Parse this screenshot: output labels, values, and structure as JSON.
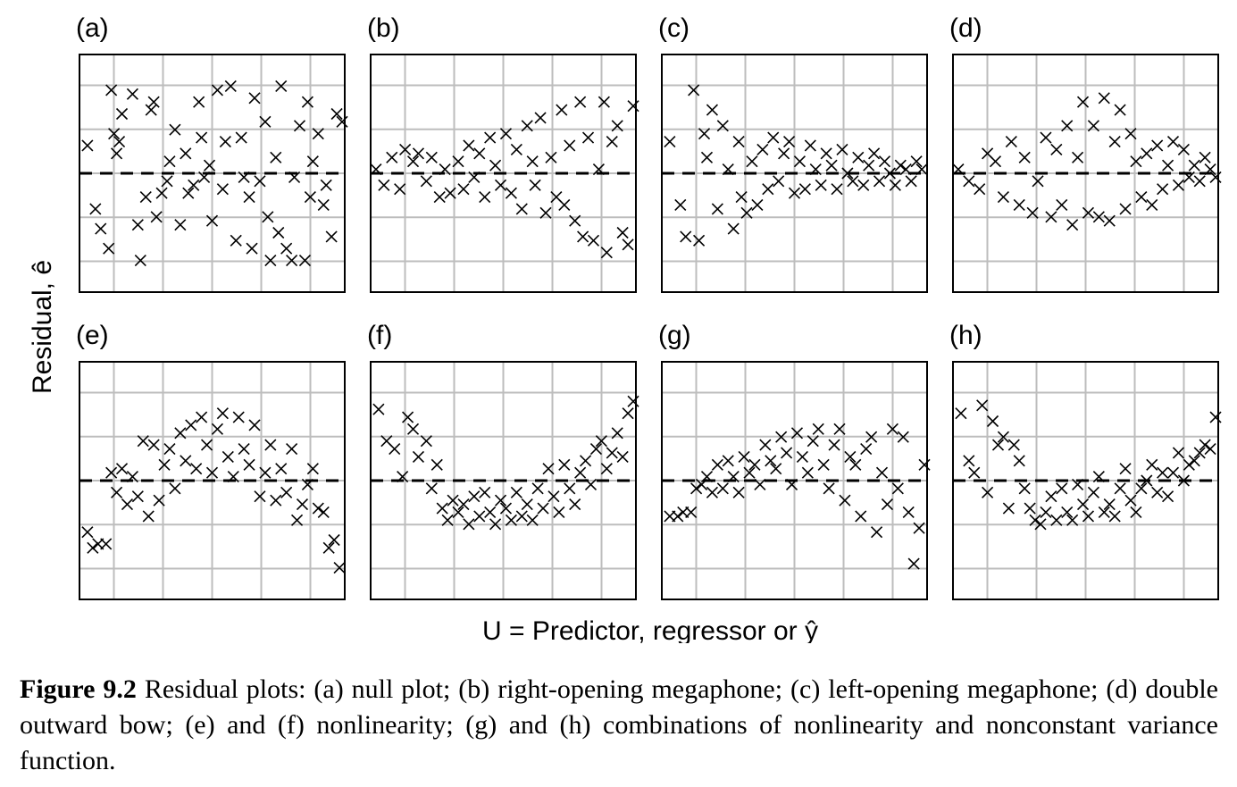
{
  "figure": {
    "ylabel": "Residual, ê",
    "xlabel": "U = Predictor, regressor or ŷ",
    "caption_label": "Figure 9.2",
    "caption_text": "Residual plots: (a) null plot; (b) right-opening megaphone; (c) left-opening megaphone; (d) double outward bow; (e) and (f) nonlinearity; (g) and (h) combinations of nonlinearity and nonconstant variance function."
  },
  "chart_data": [
    {
      "type": "scatter",
      "label": "(a)",
      "pattern": "null plot",
      "xlim": [
        0,
        1
      ],
      "ylim": [
        -3,
        3
      ],
      "grid": true,
      "reference_line": 0,
      "x": [
        0.03,
        0.06,
        0.08,
        0.11,
        0.12,
        0.13,
        0.14,
        0.15,
        0.16,
        0.2,
        0.22,
        0.23,
        0.25,
        0.27,
        0.28,
        0.29,
        0.31,
        0.33,
        0.34,
        0.36,
        0.38,
        0.4,
        0.41,
        0.43,
        0.45,
        0.46,
        0.47,
        0.49,
        0.5,
        0.52,
        0.54,
        0.55,
        0.57,
        0.59,
        0.61,
        0.62,
        0.64,
        0.65,
        0.66,
        0.68,
        0.7,
        0.71,
        0.72,
        0.74,
        0.75,
        0.76,
        0.78,
        0.8,
        0.81,
        0.83,
        0.85,
        0.86,
        0.87,
        0.88,
        0.9,
        0.92,
        0.93,
        0.95,
        0.97,
        0.99
      ],
      "y": [
        0.7,
        -0.9,
        -1.4,
        -1.9,
        2.1,
        1.0,
        0.5,
        0.8,
        1.5,
        2.0,
        -1.3,
        -2.2,
        -0.6,
        1.6,
        1.8,
        -1.1,
        -0.5,
        -0.2,
        0.3,
        1.1,
        -1.3,
        0.5,
        -0.5,
        -0.3,
        1.8,
        0.9,
        -0.1,
        0.2,
        -1.2,
        2.1,
        -0.4,
        0.8,
        2.2,
        -1.7,
        0.9,
        -0.1,
        -0.6,
        -1.9,
        1.9,
        -0.2,
        1.3,
        -1.1,
        -2.2,
        0.4,
        -1.5,
        2.2,
        -1.9,
        -2.2,
        -0.1,
        1.2,
        -2.2,
        1.8,
        -0.6,
        0.3,
        1.0,
        -0.8,
        -0.3,
        -1.6,
        1.5,
        1.3
      ]
    },
    {
      "type": "scatter",
      "label": "(b)",
      "pattern": "right-opening megaphone",
      "xlim": [
        0,
        1
      ],
      "ylim": [
        -3,
        3
      ],
      "grid": true,
      "reference_line": 0,
      "x": [
        0.02,
        0.05,
        0.08,
        0.11,
        0.13,
        0.16,
        0.18,
        0.21,
        0.23,
        0.26,
        0.28,
        0.3,
        0.33,
        0.35,
        0.37,
        0.39,
        0.41,
        0.43,
        0.45,
        0.47,
        0.49,
        0.51,
        0.53,
        0.55,
        0.57,
        0.59,
        0.61,
        0.62,
        0.64,
        0.66,
        0.68,
        0.7,
        0.72,
        0.73,
        0.75,
        0.77,
        0.79,
        0.8,
        0.82,
        0.84,
        0.86,
        0.88,
        0.89,
        0.91,
        0.93,
        0.95,
        0.97,
        0.99
      ],
      "y": [
        0.1,
        -0.3,
        0.4,
        -0.4,
        0.6,
        0.3,
        0.5,
        -0.2,
        0.4,
        -0.6,
        0.1,
        -0.5,
        0.3,
        -0.4,
        0.7,
        -0.1,
        0.5,
        -0.6,
        0.9,
        0.2,
        -0.3,
        1.0,
        -0.5,
        0.6,
        -0.9,
        1.2,
        0.3,
        -0.3,
        1.4,
        -1.0,
        0.4,
        -0.6,
        1.6,
        -0.8,
        0.7,
        -1.2,
        1.8,
        -1.6,
        0.9,
        -1.7,
        0.1,
        1.8,
        -2.0,
        0.8,
        1.2,
        -1.5,
        -1.8,
        1.7
      ]
    },
    {
      "type": "scatter",
      "label": "(c)",
      "pattern": "left-opening megaphone",
      "xlim": [
        0,
        1
      ],
      "ylim": [
        -3,
        3
      ],
      "grid": true,
      "reference_line": 0,
      "x": [
        0.03,
        0.07,
        0.09,
        0.12,
        0.14,
        0.16,
        0.17,
        0.19,
        0.21,
        0.23,
        0.25,
        0.27,
        0.29,
        0.3,
        0.32,
        0.34,
        0.36,
        0.38,
        0.4,
        0.42,
        0.44,
        0.46,
        0.48,
        0.5,
        0.52,
        0.54,
        0.56,
        0.58,
        0.6,
        0.62,
        0.64,
        0.66,
        0.68,
        0.7,
        0.72,
        0.74,
        0.76,
        0.78,
        0.8,
        0.82,
        0.84,
        0.86,
        0.88,
        0.9,
        0.92,
        0.94,
        0.96,
        0.98
      ],
      "y": [
        0.8,
        -0.8,
        -1.6,
        2.1,
        -1.7,
        1.0,
        0.4,
        1.6,
        -0.9,
        1.2,
        0.1,
        -1.4,
        0.8,
        -0.6,
        -1.0,
        0.3,
        -0.8,
        0.6,
        -0.4,
        0.9,
        -0.2,
        0.5,
        0.8,
        -0.5,
        0.3,
        -0.4,
        0.7,
        0.1,
        -0.3,
        0.5,
        0.2,
        -0.4,
        0.6,
        0.0,
        -0.2,
        0.4,
        -0.3,
        0.2,
        0.5,
        -0.2,
        0.3,
        0.0,
        -0.3,
        0.2,
        0.1,
        -0.2,
        0.3,
        0.1
      ]
    },
    {
      "type": "scatter",
      "label": "(d)",
      "pattern": "double outward bow",
      "xlim": [
        0,
        1
      ],
      "ylim": [
        -3,
        3
      ],
      "grid": true,
      "reference_line": 0,
      "x": [
        0.02,
        0.06,
        0.1,
        0.13,
        0.16,
        0.19,
        0.22,
        0.25,
        0.27,
        0.3,
        0.32,
        0.35,
        0.37,
        0.39,
        0.41,
        0.43,
        0.45,
        0.47,
        0.49,
        0.51,
        0.53,
        0.55,
        0.57,
        0.59,
        0.61,
        0.63,
        0.65,
        0.67,
        0.69,
        0.71,
        0.73,
        0.75,
        0.77,
        0.79,
        0.81,
        0.83,
        0.85,
        0.87,
        0.89,
        0.91,
        0.93,
        0.95,
        0.97,
        0.99
      ],
      "y": [
        0.1,
        -0.2,
        -0.4,
        0.5,
        0.3,
        -0.6,
        0.8,
        -0.8,
        0.4,
        -1.0,
        -0.2,
        0.9,
        -1.1,
        0.6,
        -0.8,
        1.2,
        -1.3,
        0.4,
        1.8,
        -1.0,
        1.2,
        -1.1,
        1.9,
        -1.2,
        0.8,
        1.6,
        -0.9,
        1.0,
        0.3,
        -0.6,
        0.5,
        -0.8,
        0.7,
        -0.4,
        0.2,
        0.8,
        -0.3,
        0.6,
        -0.1,
        0.2,
        -0.2,
        0.4,
        0.1,
        -0.1
      ]
    },
    {
      "type": "scatter",
      "label": "(e)",
      "pattern": "nonlinearity",
      "xlim": [
        0,
        1
      ],
      "ylim": [
        -3,
        3
      ],
      "grid": true,
      "reference_line": 0,
      "x": [
        0.03,
        0.05,
        0.07,
        0.1,
        0.12,
        0.14,
        0.16,
        0.18,
        0.2,
        0.22,
        0.24,
        0.26,
        0.28,
        0.3,
        0.32,
        0.34,
        0.36,
        0.38,
        0.4,
        0.42,
        0.44,
        0.46,
        0.48,
        0.5,
        0.52,
        0.54,
        0.56,
        0.58,
        0.6,
        0.62,
        0.64,
        0.66,
        0.68,
        0.7,
        0.72,
        0.74,
        0.76,
        0.78,
        0.8,
        0.82,
        0.84,
        0.86,
        0.88,
        0.9,
        0.92,
        0.94,
        0.96,
        0.98
      ],
      "y": [
        -1.3,
        -1.7,
        -1.6,
        -1.6,
        0.2,
        -0.3,
        0.3,
        -0.6,
        0.1,
        -0.4,
        1.0,
        -0.9,
        0.9,
        -0.5,
        0.4,
        0.8,
        -0.2,
        1.2,
        0.5,
        1.4,
        0.3,
        1.6,
        0.9,
        0.2,
        1.3,
        1.7,
        0.6,
        0.1,
        1.6,
        0.8,
        0.4,
        1.4,
        -0.4,
        0.2,
        0.9,
        -0.5,
        0.3,
        -0.3,
        0.8,
        -1.0,
        -0.6,
        -0.1,
        0.3,
        -0.7,
        -0.8,
        -1.7,
        -1.5,
        -2.2
      ]
    },
    {
      "type": "scatter",
      "label": "(f)",
      "pattern": "nonlinearity",
      "xlim": [
        0,
        1
      ],
      "ylim": [
        -3,
        3
      ],
      "grid": true,
      "reference_line": 0,
      "x": [
        0.03,
        0.06,
        0.09,
        0.12,
        0.14,
        0.16,
        0.18,
        0.21,
        0.23,
        0.25,
        0.27,
        0.29,
        0.31,
        0.33,
        0.35,
        0.37,
        0.39,
        0.41,
        0.43,
        0.45,
        0.47,
        0.49,
        0.51,
        0.53,
        0.55,
        0.57,
        0.59,
        0.61,
        0.63,
        0.65,
        0.67,
        0.69,
        0.71,
        0.73,
        0.75,
        0.77,
        0.79,
        0.81,
        0.83,
        0.85,
        0.87,
        0.89,
        0.91,
        0.93,
        0.95,
        0.97,
        0.99
      ],
      "y": [
        1.8,
        1.0,
        0.8,
        0.1,
        1.6,
        1.3,
        0.6,
        1.0,
        -0.2,
        0.4,
        -0.7,
        -1.0,
        -0.5,
        -0.8,
        -0.6,
        -1.1,
        -0.4,
        -0.9,
        -0.3,
        -0.8,
        -1.1,
        -0.5,
        -0.7,
        -1.0,
        -0.3,
        -0.9,
        -0.6,
        -1.0,
        -0.2,
        -0.7,
        0.3,
        -0.4,
        -0.8,
        0.4,
        -0.2,
        -0.6,
        0.2,
        0.5,
        -0.1,
        0.8,
        1.0,
        0.3,
        0.7,
        1.2,
        0.6,
        1.7,
        2.0
      ]
    },
    {
      "type": "scatter",
      "label": "(g)",
      "pattern": "nonlinearity and nonconstant variance",
      "xlim": [
        0,
        1
      ],
      "ylim": [
        -3,
        3
      ],
      "grid": true,
      "reference_line": 0,
      "x": [
        0.03,
        0.06,
        0.08,
        0.11,
        0.13,
        0.15,
        0.17,
        0.19,
        0.21,
        0.23,
        0.25,
        0.27,
        0.29,
        0.31,
        0.33,
        0.35,
        0.37,
        0.39,
        0.41,
        0.43,
        0.45,
        0.47,
        0.49,
        0.51,
        0.53,
        0.55,
        0.57,
        0.59,
        0.61,
        0.63,
        0.65,
        0.67,
        0.69,
        0.71,
        0.73,
        0.75,
        0.77,
        0.79,
        0.81,
        0.83,
        0.85,
        0.87,
        0.89,
        0.91,
        0.93,
        0.95,
        0.97,
        0.99
      ],
      "y": [
        -0.9,
        -0.9,
        -0.8,
        -0.8,
        -0.2,
        -0.1,
        0.1,
        -0.3,
        0.4,
        -0.2,
        0.5,
        0.1,
        -0.3,
        0.6,
        0.2,
        0.4,
        -0.1,
        0.9,
        0.5,
        0.3,
        1.1,
        0.7,
        -0.1,
        1.2,
        0.6,
        0.2,
        1.0,
        1.3,
        0.4,
        -0.2,
        0.9,
        1.3,
        -0.5,
        0.6,
        0.4,
        -0.9,
        0.8,
        1.1,
        -1.3,
        0.2,
        -0.6,
        1.3,
        -0.2,
        1.1,
        -0.8,
        -2.1,
        -1.2,
        0.4
      ]
    },
    {
      "type": "scatter",
      "label": "(h)",
      "pattern": "nonlinearity and nonconstant variance",
      "xlim": [
        0,
        1
      ],
      "ylim": [
        -3,
        3
      ],
      "grid": true,
      "reference_line": 0,
      "x": [
        0.03,
        0.06,
        0.08,
        0.11,
        0.13,
        0.15,
        0.17,
        0.19,
        0.21,
        0.23,
        0.25,
        0.27,
        0.29,
        0.31,
        0.33,
        0.35,
        0.37,
        0.39,
        0.41,
        0.43,
        0.45,
        0.47,
        0.49,
        0.51,
        0.53,
        0.55,
        0.57,
        0.59,
        0.61,
        0.63,
        0.65,
        0.67,
        0.69,
        0.71,
        0.73,
        0.75,
        0.77,
        0.79,
        0.81,
        0.83,
        0.85,
        0.87,
        0.89,
        0.91,
        0.93,
        0.95,
        0.97,
        0.99
      ],
      "y": [
        1.7,
        0.5,
        0.2,
        1.9,
        -0.3,
        1.5,
        0.9,
        1.1,
        -0.7,
        0.9,
        0.5,
        -0.2,
        -0.7,
        -1.0,
        -1.1,
        -0.8,
        -0.4,
        -1.0,
        -0.2,
        -0.8,
        -1.0,
        -0.1,
        -0.6,
        -0.9,
        -0.3,
        0.1,
        -0.8,
        -0.6,
        -0.9,
        -0.2,
        0.3,
        -0.5,
        -0.8,
        -0.2,
        0.0,
        0.4,
        -0.3,
        0.2,
        -0.4,
        0.2,
        0.7,
        0.0,
        0.4,
        0.5,
        0.7,
        0.9,
        0.8,
        1.6
      ]
    }
  ]
}
